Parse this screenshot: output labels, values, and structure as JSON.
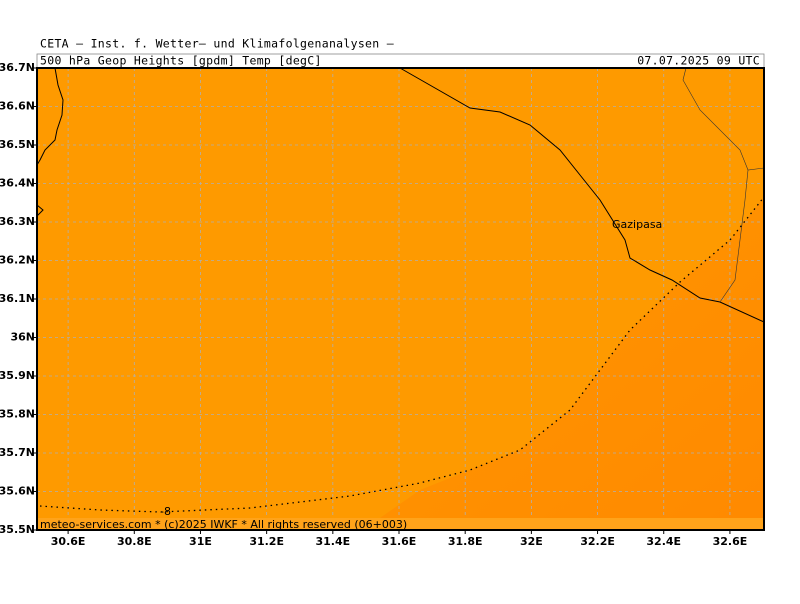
{
  "header": {
    "title": "CETA – Inst. f. Wetter– und Klimafolgenanalysen –",
    "field": "500 hPa Geop Heights [gpdm] Temp [degC]",
    "valid": "07.07.2025 09 UTC"
  },
  "map": {
    "xlim": [
      30.506,
      32.703
    ],
    "ylim": [
      35.5,
      36.7
    ],
    "grid": true,
    "xticks": [
      {
        "value": 30.6,
        "label": "30.6E"
      },
      {
        "value": 30.8,
        "label": "30.8E"
      },
      {
        "value": 31,
        "label": "31E"
      },
      {
        "value": 31.2,
        "label": "31.2E"
      },
      {
        "value": 31.4,
        "label": "31.4E"
      },
      {
        "value": 31.6,
        "label": "31.6E"
      },
      {
        "value": 31.8,
        "label": "31.8E"
      },
      {
        "value": 32,
        "label": "32E"
      },
      {
        "value": 32.2,
        "label": "32.2E"
      },
      {
        "value": 32.4,
        "label": "32.4E"
      },
      {
        "value": 32.6,
        "label": "32.6E"
      }
    ],
    "yticks": [
      {
        "value": 36.7,
        "label": "36.7N"
      },
      {
        "value": 36.6,
        "label": "36.6N"
      },
      {
        "value": 36.5,
        "label": "36.5N"
      },
      {
        "value": 36.4,
        "label": "36.4N"
      },
      {
        "value": 36.3,
        "label": "36.3N"
      },
      {
        "value": 36.2,
        "label": "36.2N"
      },
      {
        "value": 36.1,
        "label": "36.1N"
      },
      {
        "value": 36,
        "label": "36N"
      },
      {
        "value": 35.9,
        "label": "35.9N"
      },
      {
        "value": 35.8,
        "label": "35.8N"
      },
      {
        "value": 35.7,
        "label": "35.7N"
      },
      {
        "value": 35.6,
        "label": "35.6N"
      },
      {
        "value": 35.5,
        "label": "35.5N"
      }
    ],
    "places": [
      "Gazipasa"
    ],
    "contour_labels": [
      "-8"
    ]
  },
  "footer": "meteo-services.com * (c)2025 IWKF * All rights reserved (06+003)"
}
